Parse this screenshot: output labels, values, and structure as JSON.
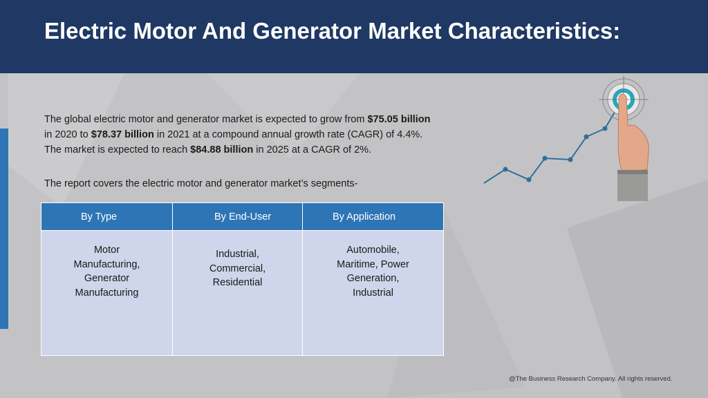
{
  "slide": {
    "title": "Electric Motor And Generator Market Characteristics:",
    "intro": {
      "line1_a": "The global electric motor and generator market is expected to grow from ",
      "line1_b": "$75.05 billion",
      "line2_a": "in 2020 to ",
      "line2_b": "$78.37 billion",
      "line2_c": " in 2021 at a compound annual growth rate (CAGR) of 4.4%.",
      "line3_a": "The market is expected to reach ",
      "line3_b": "$84.88 billion",
      "line3_c": " in 2025 at a CAGR of 2%."
    },
    "segments_intro": "The report covers the electric motor and generator market’s segments-",
    "table": {
      "headers": [
        "By Type",
        "By End-User",
        "By Application"
      ],
      "cells": [
        [
          "Motor",
          "Manufacturing,",
          "Generator",
          "Manufacturing"
        ],
        [
          "Industrial,",
          "Commercial,",
          "Residential"
        ],
        [
          "Automobile,",
          "Maritime, Power",
          "Generation,",
          "Industrial"
        ]
      ]
    },
    "footer": "@The Business Research Company. All rights reserved.",
    "colors": {
      "header_bg": "#1f3864",
      "accent_blue": "#2e75b6",
      "table_body": "#cfd5ea",
      "background": "#c3c3c5"
    }
  }
}
